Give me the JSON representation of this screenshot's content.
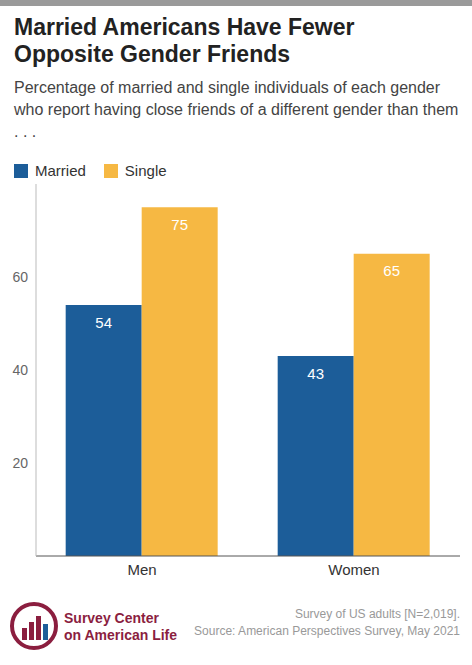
{
  "chart_data": {
    "type": "bar",
    "title": "Married Americans Have Fewer Opposite Gender Friends",
    "subtitle": "Percentage of married and single individuals of each gender who report having close friends of a different gender than them . . .",
    "categories": [
      "Men",
      "Women"
    ],
    "series": [
      {
        "name": "Married",
        "color": "#1c5d99",
        "values": [
          54,
          43
        ]
      },
      {
        "name": "Single",
        "color": "#f6b843",
        "values": [
          75,
          65
        ]
      }
    ],
    "ylim": [
      0,
      80
    ],
    "yticks": [
      20,
      40,
      60
    ],
    "grid": false,
    "legend": "top left",
    "data_labels": true,
    "notes": [
      "Survey of US adults [N=2,019].",
      "Source: American Perspectives Survey, May 2021"
    ],
    "logo": [
      "Survey Center",
      "on American Life"
    ]
  }
}
